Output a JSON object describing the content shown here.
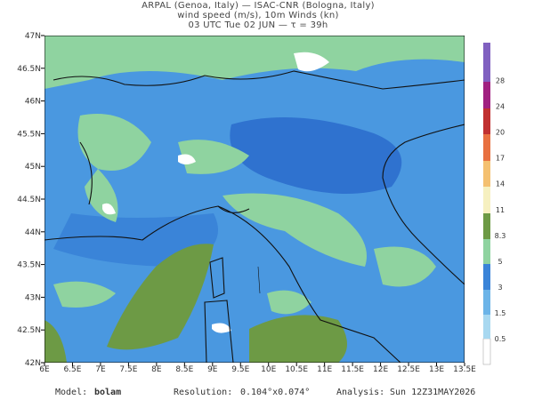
{
  "header": {
    "line1": "ARPAL (Genoa, Italy)  —  ISAC-CNR (Bologna, Italy)",
    "line2": "wind speed (m/s), 10m Winds (kn)",
    "line3": "03 UTC Tue 02 JUN  —  τ = 39h"
  },
  "axes": {
    "lon": [
      "6E",
      "6.5E",
      "7E",
      "7.5E",
      "8E",
      "8.5E",
      "9E",
      "9.5E",
      "10E",
      "10.5E",
      "11E",
      "11.5E",
      "12E",
      "12.5E",
      "13E",
      "13.5E"
    ],
    "lat": [
      "42N",
      "42.5N",
      "43N",
      "43.5N",
      "44N",
      "44.5N",
      "45N",
      "45.5N",
      "46N",
      "46.5N",
      "47N"
    ]
  },
  "colorbar": {
    "labels": [
      "0.5",
      "1.5",
      "3",
      "5",
      "8.3",
      "11",
      "14",
      "17",
      "20",
      "24",
      "28"
    ]
  },
  "footer": {
    "model_label": "Model:",
    "model": "bolam",
    "resolution_label": "Resolution:",
    "resolution": "0.104°x0.074°",
    "analysis_label": "Analysis:",
    "analysis": "Sun 12Z31MAY2026"
  }
}
